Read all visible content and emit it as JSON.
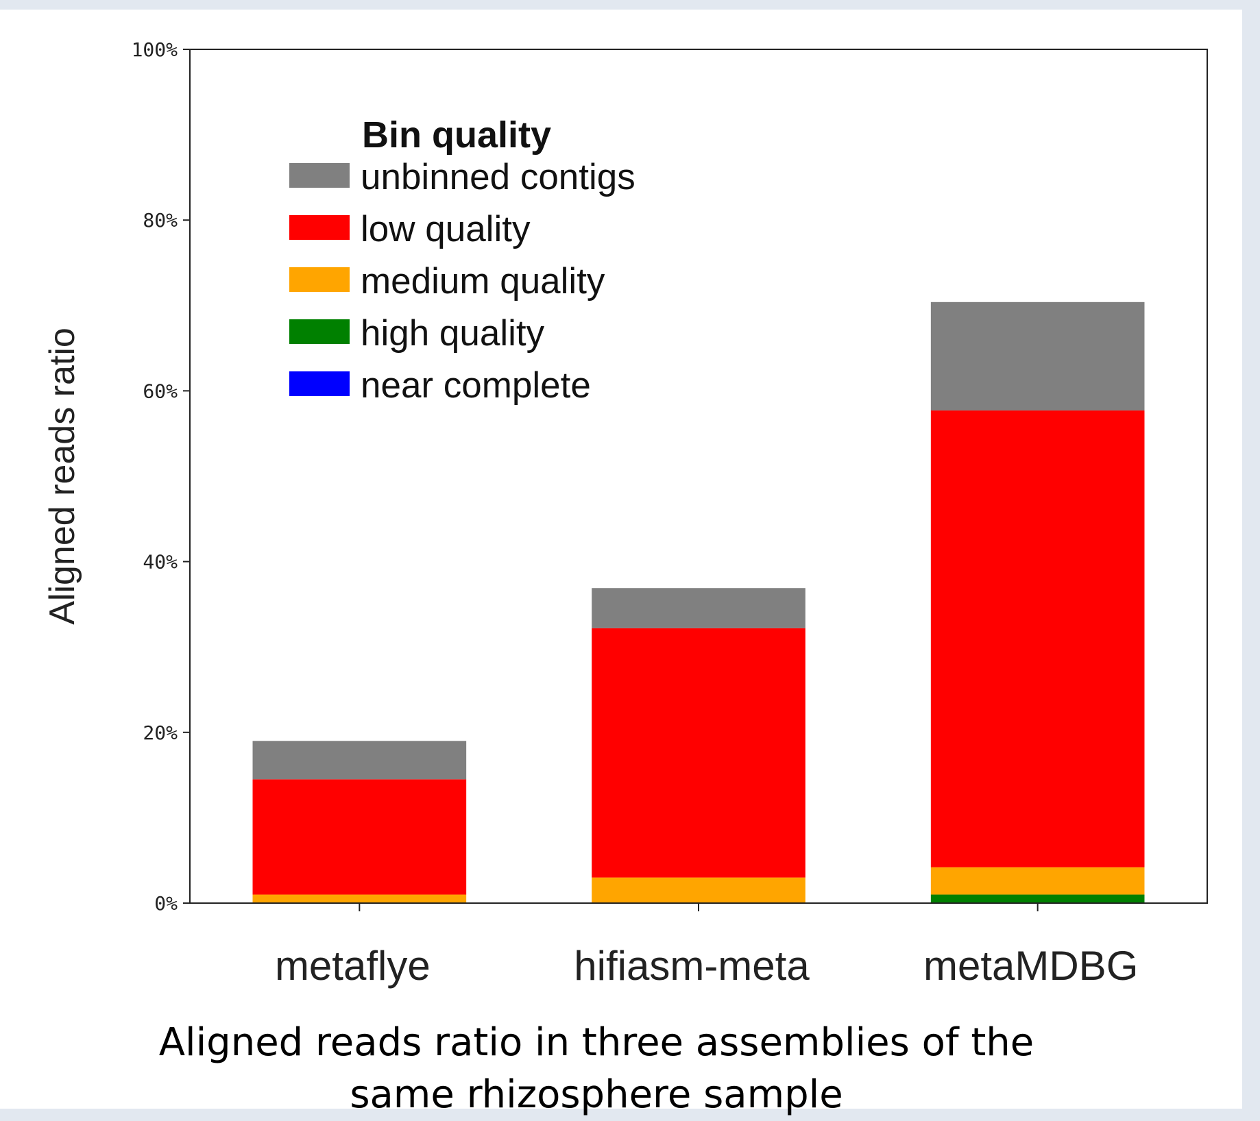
{
  "chart_data": {
    "type": "bar",
    "stacked": true,
    "categories": [
      "metaflye",
      "hifiasm-meta",
      "metaMDBG"
    ],
    "ylabel": "Aligned reads  ratio",
    "ylim": [
      0,
      100
    ],
    "yticks": [
      "0%",
      "20%",
      "40%",
      "60%",
      "80%",
      "100%"
    ],
    "grid": false,
    "legend": {
      "title": "Bin quality",
      "placement": "top-left"
    },
    "series": [
      {
        "name": "near complete",
        "color": "#0000ff",
        "values": [
          0,
          0,
          0
        ]
      },
      {
        "name": "high quality",
        "color": "#008000",
        "values": [
          0,
          0,
          1.0
        ]
      },
      {
        "name": "medium quality",
        "color": "#ffa500",
        "values": [
          1.0,
          3.0,
          3.2
        ]
      },
      {
        "name": "low quality",
        "color": "#ff0000",
        "values": [
          13.5,
          29.2,
          53.5
        ]
      },
      {
        "name": "unbinned contigs",
        "color": "#808080",
        "values": [
          4.5,
          4.7,
          12.7
        ]
      }
    ],
    "legend_order": [
      "unbinned contigs",
      "low quality",
      "medium quality",
      "high quality",
      "near complete"
    ]
  },
  "caption": {
    "line1": "Aligned reads ratio in three assemblies of the",
    "line2": "same rhizosphere sample"
  }
}
